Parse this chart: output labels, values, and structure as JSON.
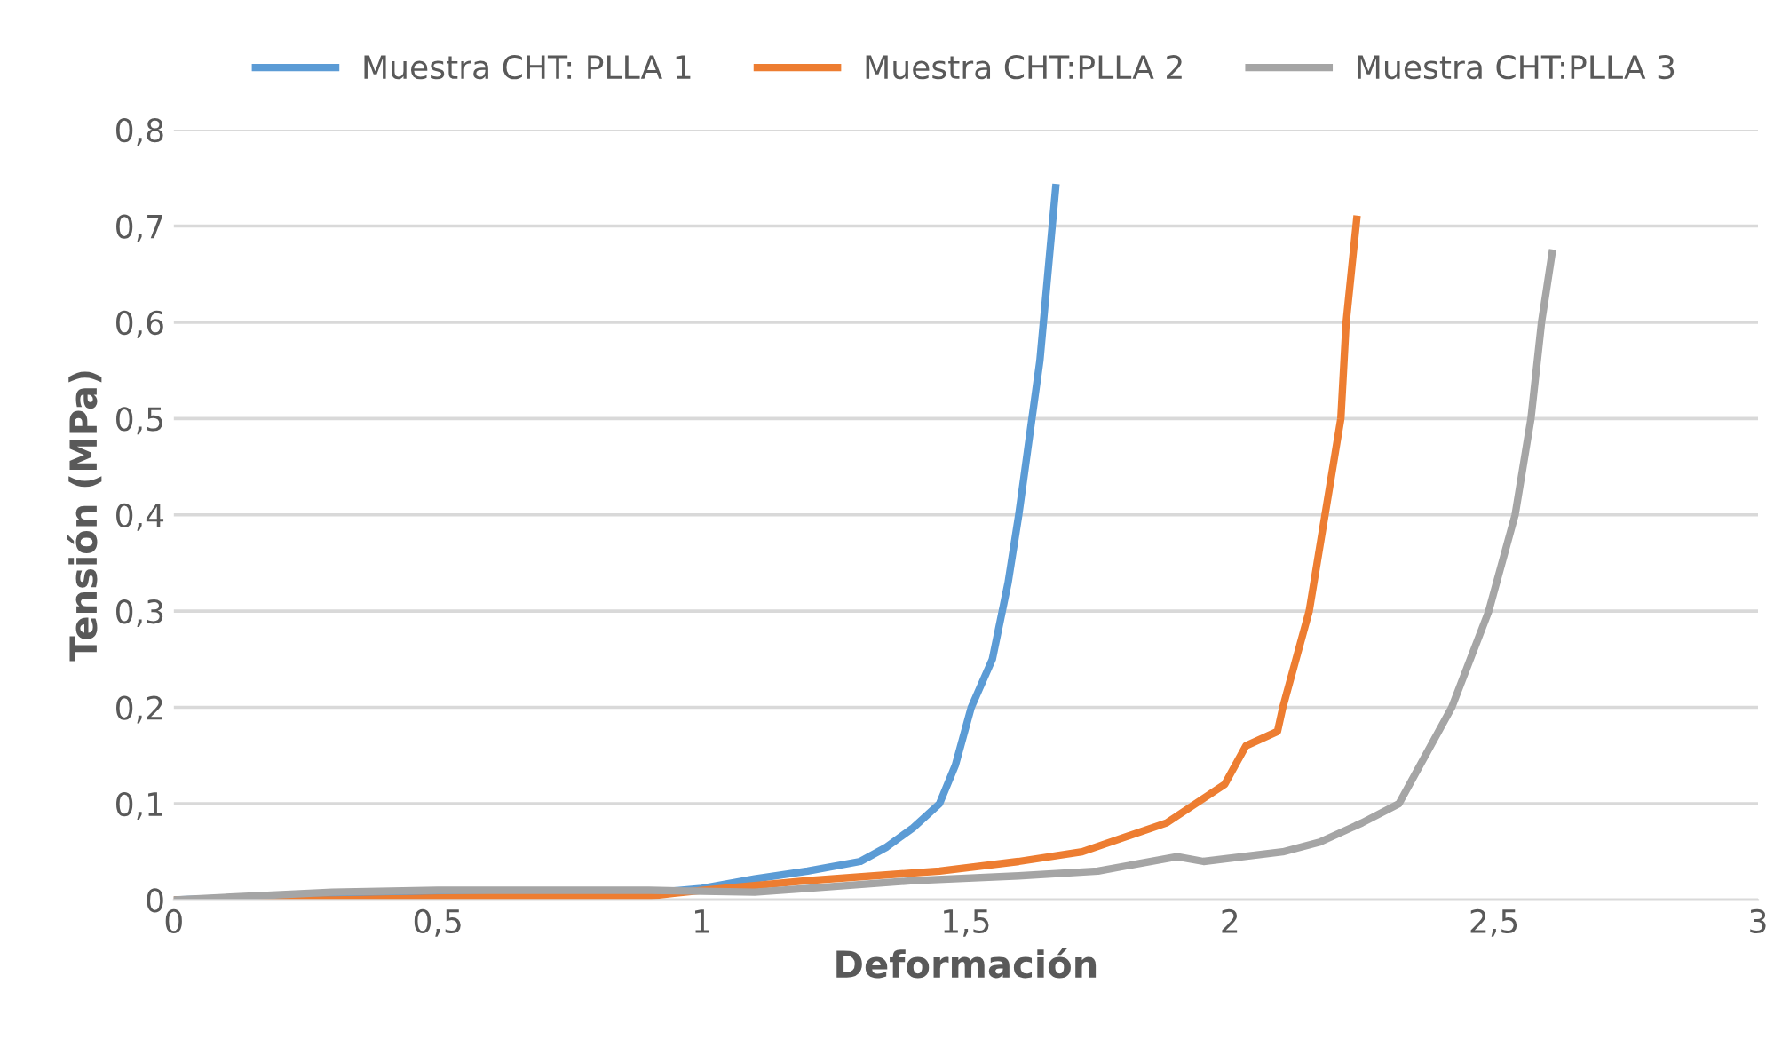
{
  "chart_data": {
    "type": "line",
    "xlabel": "Deformación",
    "ylabel": "Tensión (MPa)",
    "xlim": [
      0,
      3
    ],
    "ylim": [
      0,
      0.8
    ],
    "xticks": [
      0,
      {
        "value": 0.5,
        "label": "0,5"
      },
      1,
      {
        "value": 1.5,
        "label": "1,5"
      },
      2,
      {
        "value": 2.5,
        "label": "2,5"
      },
      3
    ],
    "yticks": [
      0,
      {
        "value": 0.1,
        "label": "0,1"
      },
      {
        "value": 0.2,
        "label": "0,2"
      },
      {
        "value": 0.3,
        "label": "0,3"
      },
      {
        "value": 0.4,
        "label": "0,4"
      },
      {
        "value": 0.5,
        "label": "0,5"
      },
      {
        "value": 0.6,
        "label": "0,6"
      },
      {
        "value": 0.7,
        "label": "0,7"
      },
      {
        "value": 0.8,
        "label": "0,8"
      }
    ],
    "grid": "y",
    "legend": "top",
    "marker": "none",
    "line_style": "solid",
    "series": [
      {
        "name": "Muestra CHT: PLLA 1",
        "color": "#5b9bd5",
        "x": [
          0,
          0.3,
          0.6,
          0.9,
          1.0,
          1.1,
          1.2,
          1.3,
          1.35,
          1.4,
          1.45,
          1.48,
          1.51,
          1.55,
          1.58,
          1.6,
          1.64,
          1.67
        ],
        "values": [
          0,
          0.005,
          0.003,
          0.007,
          0.012,
          0.022,
          0.03,
          0.04,
          0.055,
          0.075,
          0.1,
          0.14,
          0.2,
          0.25,
          0.33,
          0.4,
          0.56,
          0.74
        ]
      },
      {
        "name": "Muestra CHT:PLLA 2",
        "color": "#ed7d31",
        "x": [
          0,
          0.3,
          0.6,
          0.9,
          1.0,
          1.2,
          1.45,
          1.6,
          1.72,
          1.88,
          1.99,
          2.03,
          2.09,
          2.1,
          2.15,
          2.18,
          2.21,
          2.22,
          2.24
        ],
        "values": [
          0,
          0,
          0.003,
          0.004,
          0.01,
          0.02,
          0.03,
          0.04,
          0.05,
          0.08,
          0.12,
          0.16,
          0.175,
          0.2,
          0.3,
          0.4,
          0.5,
          0.6,
          0.707
        ]
      },
      {
        "name": "Muestra CHT:PLLA 3",
        "color": "#a5a5a5",
        "x": [
          0,
          0.3,
          0.5,
          0.9,
          1.1,
          1.2,
          1.4,
          1.6,
          1.75,
          1.9,
          1.95,
          2.1,
          2.17,
          2.25,
          2.32,
          2.42,
          2.49,
          2.54,
          2.57,
          2.59,
          2.61
        ],
        "values": [
          0,
          0.008,
          0.01,
          0.01,
          0.008,
          0.012,
          0.02,
          0.025,
          0.03,
          0.045,
          0.04,
          0.05,
          0.06,
          0.08,
          0.1,
          0.2,
          0.3,
          0.4,
          0.5,
          0.6,
          0.672
        ]
      }
    ]
  }
}
